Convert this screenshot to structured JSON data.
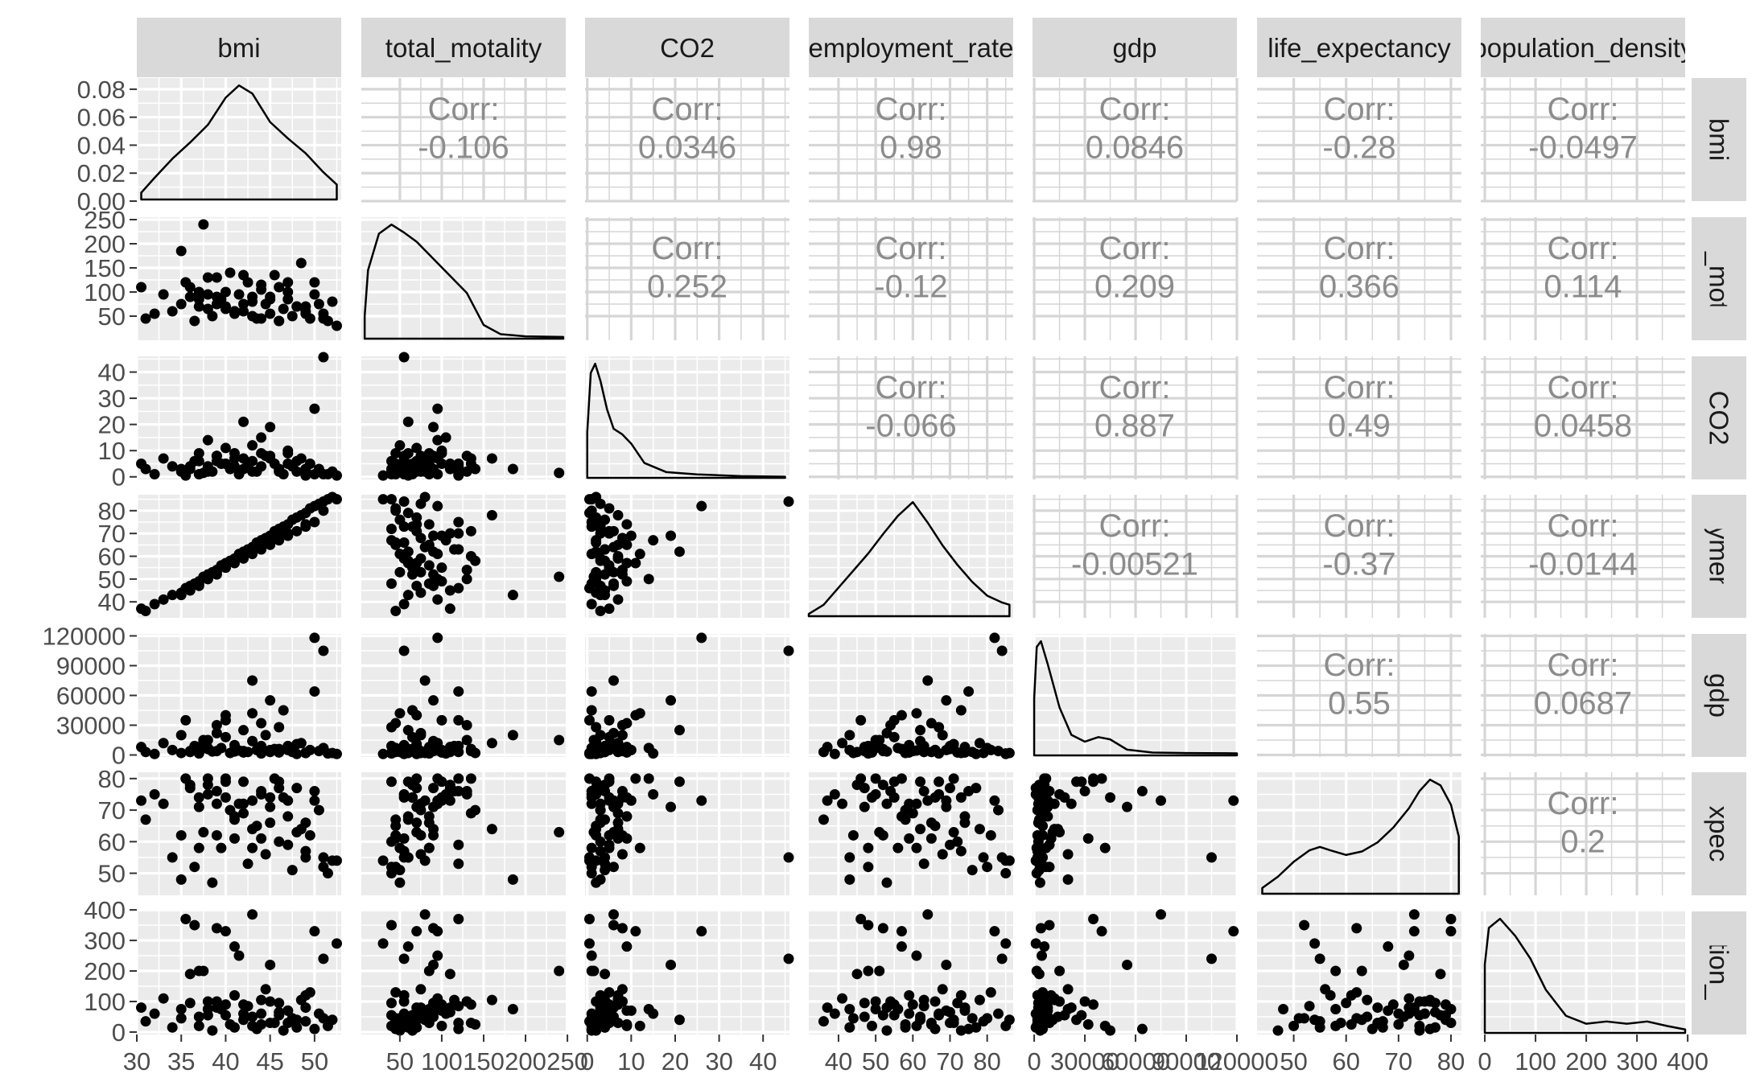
{
  "chart_data": {
    "type": "scatter",
    "title": "",
    "grid": true,
    "variables": [
      "bmi",
      "total_motality",
      "CO2",
      "employment_rate",
      "gdp",
      "life_expectancy",
      "population_density"
    ],
    "strip_labels_top": [
      "bmi",
      "total_motality",
      "CO2",
      "employment_rate",
      "gdp",
      "life_expectancy",
      "population_density"
    ],
    "strip_labels_right": [
      "bmi",
      "total_motality",
      "CO2",
      "employment_rate",
      "gdp",
      "life_expectancy",
      "population_density"
    ],
    "corr_label": "Corr:",
    "correlations": [
      {
        "x": "total_motality",
        "y": "bmi",
        "value": "-0.106"
      },
      {
        "x": "CO2",
        "y": "bmi",
        "value": "0.0346"
      },
      {
        "x": "employment_rate",
        "y": "bmi",
        "value": "0.98"
      },
      {
        "x": "gdp",
        "y": "bmi",
        "value": "0.0846"
      },
      {
        "x": "life_expectancy",
        "y": "bmi",
        "value": "-0.28"
      },
      {
        "x": "population_density",
        "y": "bmi",
        "value": "-0.0497"
      },
      {
        "x": "CO2",
        "y": "total_motality",
        "value": "0.252"
      },
      {
        "x": "employment_rate",
        "y": "total_motality",
        "value": "-0.12"
      },
      {
        "x": "gdp",
        "y": "total_motality",
        "value": "0.209"
      },
      {
        "x": "life_expectancy",
        "y": "total_motality",
        "value": "0.366"
      },
      {
        "x": "population_density",
        "y": "total_motality",
        "value": "0.114"
      },
      {
        "x": "employment_rate",
        "y": "CO2",
        "value": "-0.066"
      },
      {
        "x": "gdp",
        "y": "CO2",
        "value": "0.887"
      },
      {
        "x": "life_expectancy",
        "y": "CO2",
        "value": "0.49"
      },
      {
        "x": "population_density",
        "y": "CO2",
        "value": "0.0458"
      },
      {
        "x": "gdp",
        "y": "employment_rate",
        "value": "-0.00521"
      },
      {
        "x": "life_expectancy",
        "y": "employment_rate",
        "value": "-0.37"
      },
      {
        "x": "population_density",
        "y": "employment_rate",
        "value": "-0.0144"
      },
      {
        "x": "life_expectancy",
        "y": "gdp",
        "value": "0.55"
      },
      {
        "x": "population_density",
        "y": "gdp",
        "value": "0.0687"
      },
      {
        "x": "population_density",
        "y": "life_expectancy",
        "value": "0.2"
      }
    ],
    "x_axes": [
      {
        "variable": "bmi",
        "range": [
          30,
          53
        ],
        "ticks": [
          30,
          35,
          40,
          45,
          50
        ],
        "tick_labels": [
          "30",
          "35",
          "40",
          "45",
          "50"
        ]
      },
      {
        "variable": "total_motality",
        "range": [
          4,
          248
        ],
        "ticks": [
          50,
          100,
          150,
          200,
          250
        ],
        "tick_labels": [
          "50",
          "100",
          "150",
          "200",
          "250"
        ]
      },
      {
        "variable": "CO2",
        "range": [
          -0.5,
          46
        ],
        "ticks": [
          0,
          10,
          20,
          30,
          40
        ],
        "tick_labels": [
          "0",
          "10",
          "20",
          "30",
          "40"
        ]
      },
      {
        "variable": "employment_rate",
        "range": [
          32,
          87
        ],
        "ticks": [
          40,
          50,
          60,
          70,
          80
        ],
        "tick_labels": [
          "40",
          "50",
          "60",
          "70",
          "80"
        ]
      },
      {
        "variable": "gdp",
        "range": [
          -1000,
          120000
        ],
        "ticks": [
          0,
          30000,
          60000,
          90000,
          120000
        ],
        "tick_labels": [
          "0",
          "30000",
          "60000",
          "90000",
          "120000"
        ]
      },
      {
        "variable": "life_expectancy",
        "range": [
          43,
          82
        ],
        "ticks": [
          50,
          60,
          70,
          80
        ],
        "tick_labels": [
          "50",
          "60",
          "70",
          "80"
        ]
      },
      {
        "variable": "population_density",
        "range": [
          -8,
          395
        ],
        "ticks": [
          0,
          100,
          200,
          300,
          400
        ],
        "tick_labels": [
          "0",
          "100",
          "200",
          "300",
          "400"
        ]
      }
    ],
    "y_axes": [
      {
        "variable": "bmi",
        "range": [
          0,
          0.088
        ],
        "ticks": [
          0,
          0.02,
          0.04,
          0.06,
          0.08
        ],
        "tick_labels": [
          "0.00",
          "0.02",
          "0.04",
          "0.06",
          "0.08"
        ]
      },
      {
        "variable": "total_motality",
        "range": [
          0,
          255
        ],
        "ticks": [
          50,
          100,
          150,
          200,
          250
        ],
        "tick_labels": [
          "50",
          "100",
          "150",
          "200",
          "250"
        ]
      },
      {
        "variable": "CO2",
        "range": [
          -1,
          46
        ],
        "ticks": [
          0,
          10,
          20,
          30,
          40
        ],
        "tick_labels": [
          "0",
          "10",
          "20",
          "30",
          "40"
        ]
      },
      {
        "variable": "employment_rate",
        "range": [
          33,
          87
        ],
        "ticks": [
          40,
          50,
          60,
          70,
          80
        ],
        "tick_labels": [
          "40",
          "50",
          "60",
          "70",
          "80"
        ]
      },
      {
        "variable": "gdp",
        "range": [
          -2000,
          122000
        ],
        "ticks": [
          0,
          30000,
          60000,
          90000,
          120000
        ],
        "tick_labels": [
          "0",
          "30000",
          "60000",
          "90000",
          "120000"
        ]
      },
      {
        "variable": "life_expectancy",
        "range": [
          43,
          82
        ],
        "ticks": [
          50,
          60,
          70,
          80
        ],
        "tick_labels": [
          "50",
          "60",
          "70",
          "80"
        ]
      },
      {
        "variable": "population_density",
        "range": [
          -8,
          395
        ],
        "ticks": [
          0,
          100,
          200,
          300,
          400
        ],
        "tick_labels": [
          "0",
          "100",
          "200",
          "300",
          "400"
        ]
      }
    ],
    "density_curves": [
      {
        "variable": "bmi",
        "x": [
          30.5,
          32,
          34,
          36,
          38,
          40,
          41.5,
          43,
          45,
          47,
          49,
          51,
          52.5
        ],
        "density": [
          0.005,
          0.016,
          0.03,
          0.042,
          0.055,
          0.075,
          0.084,
          0.078,
          0.057,
          0.045,
          0.034,
          0.02,
          0.011
        ]
      },
      {
        "variable": "total_motality",
        "x": [
          8,
          12,
          25,
          40,
          55,
          70,
          90,
          110,
          130,
          150,
          170,
          200,
          245
        ],
        "density": [
          0.2,
          0.6,
          0.92,
          1.0,
          0.93,
          0.85,
          0.7,
          0.55,
          0.4,
          0.12,
          0.04,
          0.02,
          0.015
        ]
      },
      {
        "variable": "CO2",
        "x": [
          0,
          0.8,
          1.8,
          3,
          4.5,
          6,
          8,
          10,
          13,
          18,
          25,
          35,
          45
        ],
        "density": [
          0.4,
          0.92,
          1.0,
          0.85,
          0.6,
          0.43,
          0.38,
          0.3,
          0.13,
          0.05,
          0.03,
          0.015,
          0.01
        ]
      },
      {
        "variable": "employment_rate",
        "x": [
          32,
          36,
          40,
          44,
          48,
          52,
          56,
          60,
          64,
          68,
          72,
          76,
          80,
          84,
          86
        ],
        "density": [
          0.02,
          0.1,
          0.25,
          0.4,
          0.55,
          0.72,
          0.88,
          1.0,
          0.82,
          0.62,
          0.45,
          0.3,
          0.18,
          0.12,
          0.1
        ]
      },
      {
        "variable": "gdp",
        "x": [
          0,
          1500,
          4000,
          8000,
          15000,
          22000,
          30000,
          38000,
          45000,
          55000,
          70000,
          90000,
          120000
        ],
        "density": [
          0.5,
          0.95,
          1.0,
          0.8,
          0.42,
          0.18,
          0.12,
          0.16,
          0.14,
          0.05,
          0.025,
          0.02,
          0.018
        ]
      },
      {
        "variable": "life_expectancy",
        "x": [
          44,
          47,
          50,
          53,
          55,
          57,
          60,
          63,
          66,
          69,
          72,
          74,
          76,
          78,
          80,
          81.5
        ],
        "density": [
          0.05,
          0.15,
          0.28,
          0.38,
          0.41,
          0.38,
          0.34,
          0.37,
          0.45,
          0.58,
          0.75,
          0.9,
          1.0,
          0.95,
          0.78,
          0.5
        ]
      },
      {
        "variable": "population_density",
        "x": [
          0,
          8,
          30,
          60,
          90,
          120,
          160,
          200,
          240,
          280,
          320,
          360,
          395
        ],
        "density": [
          0.6,
          0.92,
          1.0,
          0.85,
          0.65,
          0.38,
          0.15,
          0.08,
          0.1,
          0.08,
          0.1,
          0.06,
          0.03
        ]
      }
    ],
    "points": {
      "bmi": [
        30.5,
        31,
        32,
        33,
        34,
        35,
        35.5,
        36,
        36.5,
        37,
        37.5,
        38,
        38.5,
        39,
        39.5,
        40,
        40.5,
        41,
        41.5,
        42,
        42.5,
        43,
        43.5,
        44,
        44.5,
        45,
        45.5,
        46,
        46.5,
        47,
        47.5,
        48,
        48.5,
        49,
        49.5,
        50,
        50.5,
        51,
        51.5,
        52,
        52.5,
        35,
        36,
        37,
        38,
        39,
        40,
        41,
        42,
        43,
        44,
        45,
        46,
        47,
        48,
        49,
        50,
        38,
        40,
        42,
        44,
        46,
        37,
        39,
        41,
        43,
        45,
        47,
        49,
        51
      ],
      "total_motality": [
        110,
        45,
        55,
        95,
        60,
        75,
        120,
        90,
        40,
        100,
        240,
        65,
        50,
        130,
        85,
        70,
        140,
        55,
        95,
        60,
        120,
        80,
        45,
        105,
        75,
        90,
        135,
        40,
        65,
        85,
        50,
        70,
        160,
        60,
        45,
        95,
        75,
        55,
        40,
        80,
        30,
        185,
        110,
        70,
        130,
        90,
        100,
        60,
        75,
        50,
        115,
        85,
        40,
        100,
        70,
        55,
        120,
        95,
        65,
        135,
        45,
        110,
        85,
        75,
        60,
        90,
        55,
        120,
        70,
        45
      ],
      "CO2": [
        5,
        3,
        1,
        7,
        4,
        2,
        0.5,
        3,
        6,
        9,
        1.5,
        4,
        2,
        8,
        5,
        11,
        3,
        7,
        1,
        21,
        4,
        6,
        2,
        15,
        8,
        19,
        5,
        3,
        1,
        9,
        4,
        2,
        7,
        0.5,
        5,
        26,
        3,
        46,
        1,
        2,
        0.5,
        3,
        4,
        6,
        2,
        8,
        5,
        9,
        3,
        12,
        4,
        7,
        2,
        10,
        6,
        3,
        1,
        14,
        5,
        7,
        9,
        3,
        1,
        6,
        4,
        2,
        8,
        5,
        3,
        1
      ],
      "employment_rate": [
        37,
        36,
        39,
        41,
        43,
        44,
        46,
        47,
        48,
        49,
        51,
        52,
        53,
        54,
        56,
        57,
        58,
        59,
        61,
        62,
        63,
        64,
        66,
        67,
        68,
        69,
        71,
        72,
        73,
        74,
        76,
        77,
        78,
        79,
        81,
        82,
        83,
        84,
        85,
        86,
        85,
        43,
        45,
        47,
        50,
        52,
        55,
        57,
        59,
        61,
        63,
        65,
        67,
        69,
        71,
        73,
        75,
        50,
        55,
        60,
        65,
        70,
        48,
        53,
        58,
        62,
        66,
        70,
        74,
        80
      ],
      "gdp": [
        8000,
        3000,
        1000,
        12000,
        5000,
        2000,
        35000,
        4000,
        9000,
        2500,
        15000,
        6000,
        3500,
        30000,
        7000,
        40000,
        2000,
        10000,
        4500,
        25000,
        3000,
        75000,
        5000,
        1500,
        20000,
        55000,
        6000,
        2500,
        45000,
        8000,
        3000,
        1000,
        12000,
        2000,
        5000,
        118000,
        4000,
        105000,
        1500,
        2000,
        1000,
        20000,
        3000,
        8000,
        15000,
        4000,
        35000,
        6000,
        2500,
        42000,
        9000,
        3000,
        28000,
        5000,
        11000,
        2000,
        64000,
        7000,
        18000,
        4000,
        32000,
        6000,
        1500,
        22000,
        3500,
        14000,
        5000,
        9000,
        2500,
        7000
      ],
      "life_expectancy": [
        73,
        67,
        75,
        72,
        55,
        62,
        80,
        77,
        52,
        74,
        63,
        78,
        47,
        76,
        58,
        80,
        70,
        61,
        72,
        79,
        53,
        73,
        65,
        75,
        56,
        71,
        80,
        60,
        74,
        68,
        51,
        77,
        64,
        55,
        62,
        73,
        70,
        55,
        50,
        54,
        54,
        48,
        78,
        71,
        75,
        62,
        79,
        68,
        72,
        58,
        76,
        66,
        79,
        73,
        63,
        57,
        76,
        80,
        74,
        69,
        61,
        77,
        58,
        72,
        67,
        64,
        74,
        59,
        66,
        52
      ],
      "population_density": [
        80,
        35,
        60,
        110,
        15,
        45,
        370,
        95,
        350,
        20,
        200,
        55,
        5,
        100,
        75,
        330,
        25,
        120,
        250,
        40,
        85,
        385,
        10,
        60,
        140,
        220,
        30,
        95,
        5,
        70,
        45,
        15,
        105,
        35,
        130,
        330,
        60,
        240,
        20,
        40,
        290,
        75,
        190,
        50,
        100,
        340,
        90,
        280,
        60,
        20,
        105,
        30,
        55,
        70,
        40,
        120,
        10,
        75,
        55,
        90,
        25,
        65,
        200,
        80,
        15,
        50,
        100,
        30,
        80,
        45
      ]
    }
  }
}
